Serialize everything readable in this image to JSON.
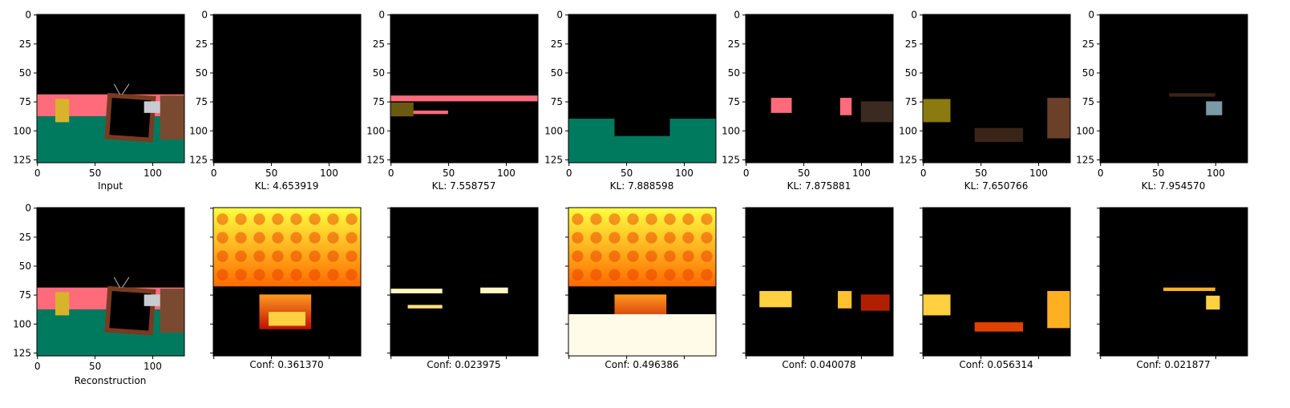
{
  "figure": {
    "top_row": [
      {
        "caption": "Input",
        "kind": "image"
      },
      {
        "caption": "KL: 4.653919",
        "kind": "image"
      },
      {
        "caption": "KL: 7.558757",
        "kind": "image"
      },
      {
        "caption": "KL: 7.888598",
        "kind": "image"
      },
      {
        "caption": "KL: 7.875881",
        "kind": "image"
      },
      {
        "caption": "KL: 7.650766",
        "kind": "image"
      },
      {
        "caption": "KL: 7.954570",
        "kind": "image"
      }
    ],
    "bottom_row": [
      {
        "caption": "Reconstruction",
        "kind": "image"
      },
      {
        "caption": "Conf: 0.361370",
        "kind": "heatmap"
      },
      {
        "caption": "Conf: 0.023975",
        "kind": "heatmap"
      },
      {
        "caption": "Conf: 0.496386",
        "kind": "heatmap"
      },
      {
        "caption": "Conf: 0.040078",
        "kind": "heatmap"
      },
      {
        "caption": "Conf: 0.056314",
        "kind": "heatmap"
      },
      {
        "caption": "Conf: 0.021877",
        "kind": "heatmap"
      }
    ],
    "x_ticks": [
      "0",
      "50",
      "100"
    ],
    "y_ticks": [
      "0",
      "25",
      "50",
      "75",
      "100",
      "125"
    ],
    "colors": {
      "scene_pink": "#ff6b7a",
      "scene_green": "#007a5e",
      "tv_brown": "#7a3a22",
      "yellow_object": "#d8b42a"
    }
  }
}
